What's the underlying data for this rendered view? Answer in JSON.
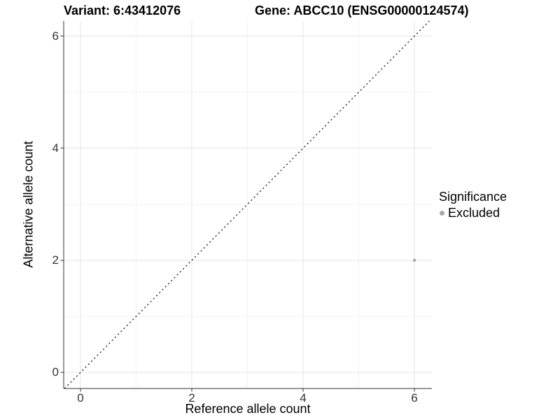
{
  "header": {
    "title_left": "Variant: 6:43412076",
    "title_right": "Gene: ABCC10 (ENSG00000124574)"
  },
  "legend": {
    "title": "Significance",
    "items": [
      {
        "label": "Excluded",
        "color": "#a8a8a8"
      }
    ]
  },
  "chart_data": {
    "type": "scatter",
    "title": "Variant: 6:43412076    Gene: ABCC10 (ENSG00000124574)",
    "xlabel": "Reference allele count",
    "ylabel": "Alternative allele count",
    "xlim": [
      -0.302,
      6.314
    ],
    "ylim": [
      -0.287,
      6.269
    ],
    "x_ticks": [
      0,
      2,
      4,
      6
    ],
    "y_ticks": [
      0,
      2,
      4,
      6
    ],
    "x_minor_ticks": [
      1,
      3,
      5
    ],
    "y_minor_ticks": [
      1,
      3,
      5
    ],
    "grid": true,
    "legend_position": "right",
    "series": [
      {
        "name": "Excluded",
        "color": "#a8a8a8",
        "points": [
          {
            "x": 6,
            "y": 2
          }
        ]
      }
    ],
    "reference_line": {
      "type": "identity",
      "style": "dashed",
      "color": "#000000"
    }
  },
  "colors": {
    "background": "#ffffff",
    "grid_major": "#e5e5e5",
    "grid_minor": "#f2f2f2",
    "axis_line": "#333333",
    "tick_mark": "#333333",
    "tick_label": "#333333"
  }
}
